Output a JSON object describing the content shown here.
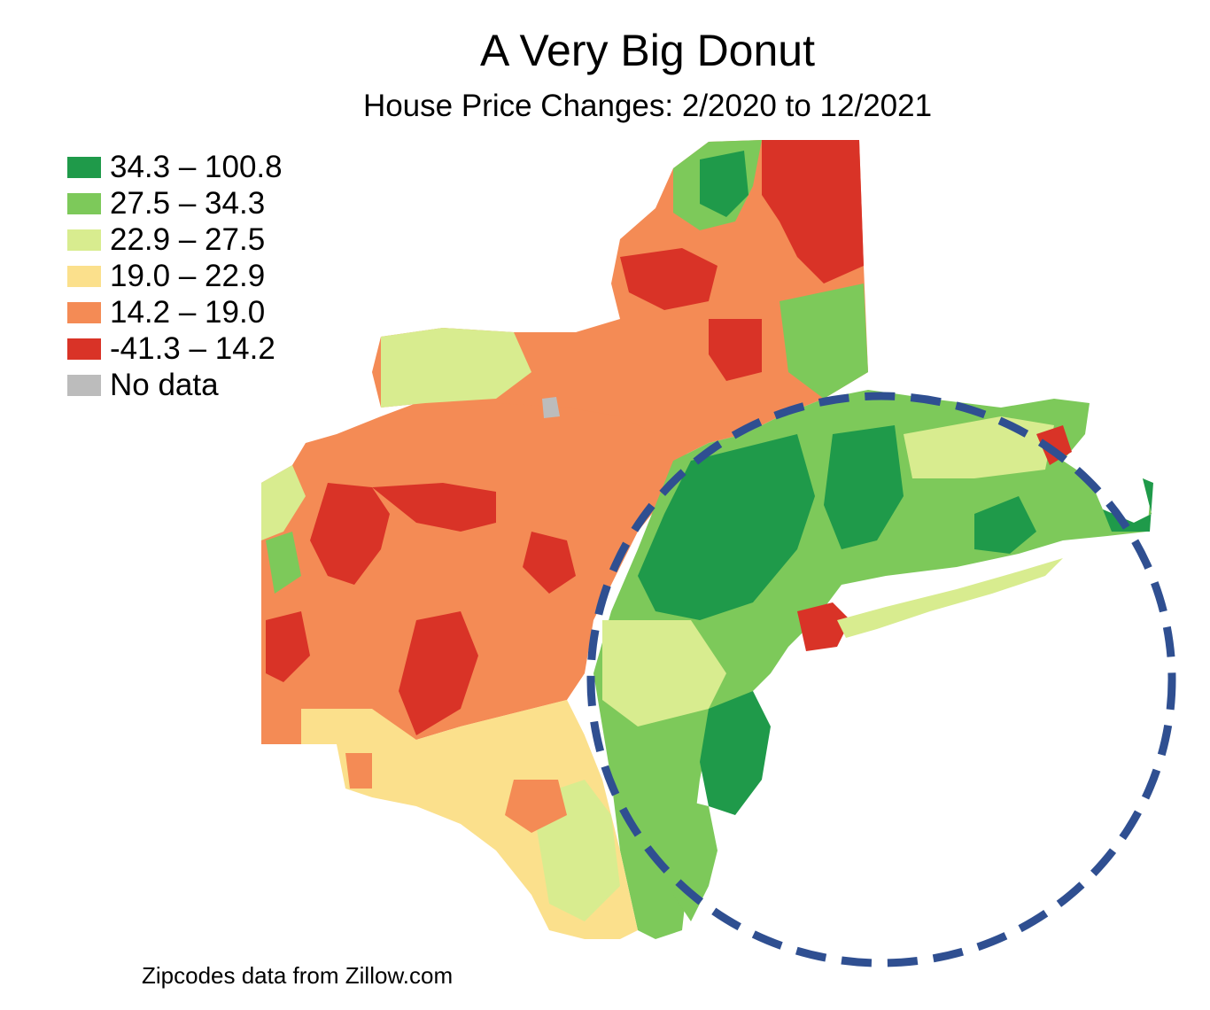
{
  "title": "A Very Big Donut",
  "subtitle": "House Price Changes: 2/2020 to 12/2021",
  "legend": {
    "items": [
      {
        "label": "34.3 – 100.8",
        "color": "#1f9a4a"
      },
      {
        "label": "27.5 – 34.3",
        "color": "#7dc95a"
      },
      {
        "label": "22.9 – 27.5",
        "color": "#d8ec8f"
      },
      {
        "label": "19.0 – 22.9",
        "color": "#fbe08c"
      },
      {
        "label": "14.2 – 19.0",
        "color": "#f48b55"
      },
      {
        "label": "-41.3 – 14.2",
        "color": "#d93327"
      }
    ],
    "no_data": {
      "label": "No data",
      "color": "#bcbcbc"
    }
  },
  "annotation": {
    "shape": "dashed circle",
    "color": "#2f4f91"
  },
  "source": "Zipcodes data from Zillow.com"
}
